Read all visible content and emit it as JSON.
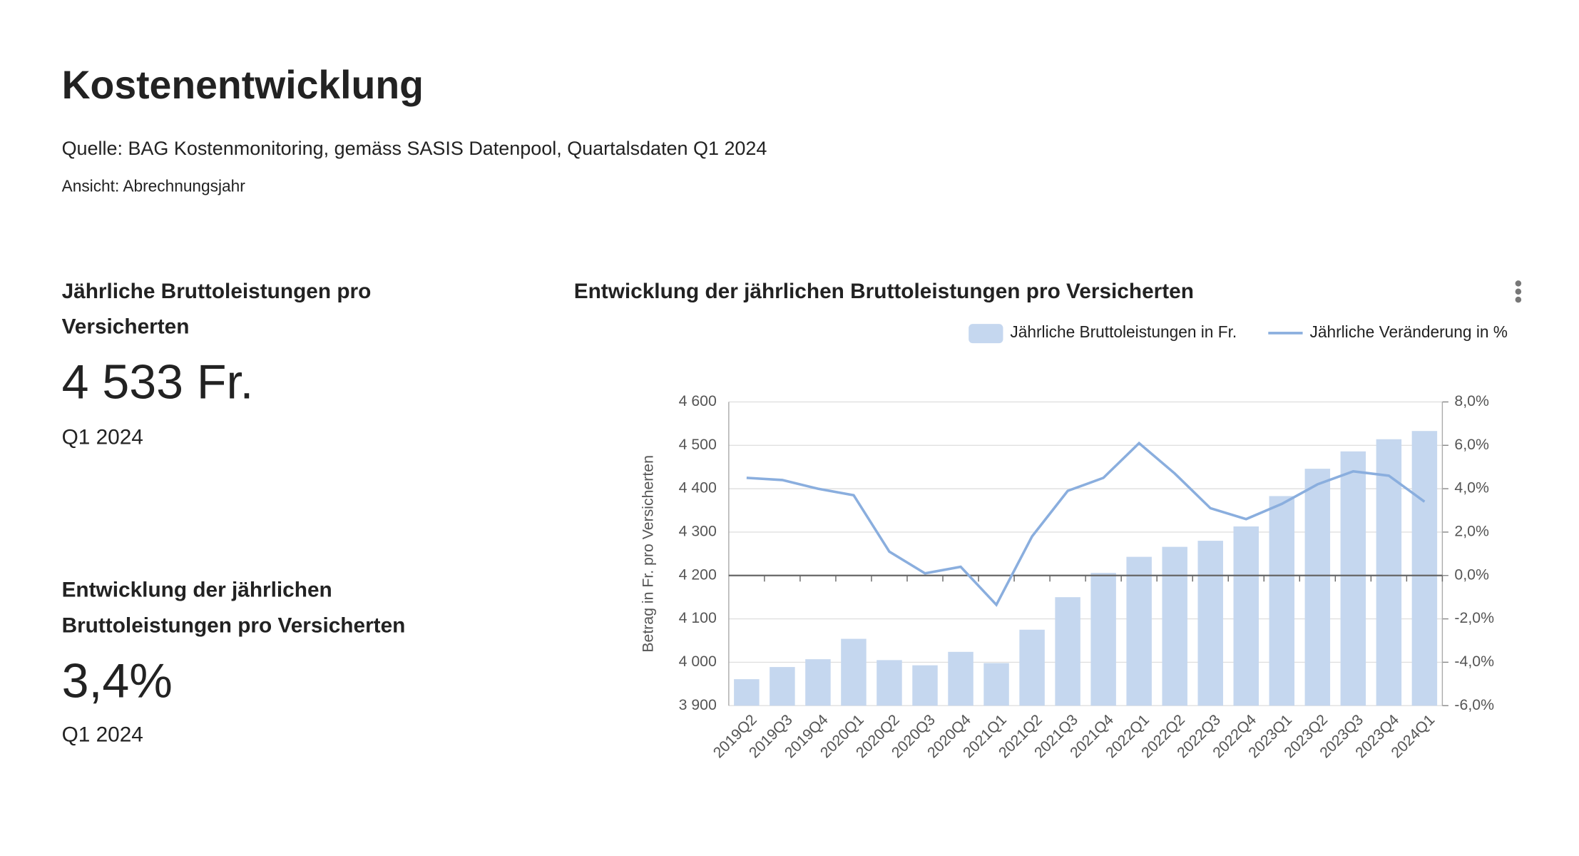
{
  "header": {
    "title": "Kostenentwicklung",
    "source": "Quelle: BAG Kostenmonitoring, gemäss SASIS Datenpool, Quartalsdaten Q1 2024",
    "view": "Ansicht: Abrechnungsjahr"
  },
  "kpis": [
    {
      "title_lines": [
        "Jährliche Bruttoleistungen pro",
        "Versicherten"
      ],
      "value": "4 533 Fr.",
      "period": "Q1 2024"
    },
    {
      "title_lines": [
        "Entwicklung der jährlichen",
        "Bruttoleistungen pro Versicherten"
      ],
      "value": "3,4%",
      "period": "Q1 2024"
    }
  ],
  "chart_data": {
    "type": "bar-line",
    "title": "Entwicklung der jährlichen Bruttoleistungen pro Versicherten",
    "ylabel": "Betrag in Fr. pro Versicherten",
    "categories": [
      "2019Q2",
      "2019Q3",
      "2019Q4",
      "2020Q1",
      "2020Q2",
      "2020Q3",
      "2020Q4",
      "2021Q1",
      "2021Q2",
      "2021Q3",
      "2021Q4",
      "2022Q1",
      "2022Q2",
      "2022Q3",
      "2022Q4",
      "2023Q1",
      "2023Q2",
      "2023Q3",
      "2023Q4",
      "2024Q1"
    ],
    "series": [
      {
        "name": "Jährliche Bruttoleistungen in Fr.",
        "type": "bar",
        "color": "#c5d7ef",
        "values": [
          3961,
          3989,
          4007,
          4054,
          4005,
          3993,
          4024,
          3998,
          4075,
          4150,
          4206,
          4243,
          4266,
          4280,
          4313,
          4383,
          4446,
          4486,
          4514,
          4533
        ]
      },
      {
        "name": "Jährliche Veränderung in %",
        "type": "line",
        "axis": "y2",
        "color": "#8aaede",
        "values": [
          4.5,
          4.4,
          4.0,
          3.7,
          1.1,
          0.1,
          0.4,
          -1.35,
          1.8,
          3.9,
          4.5,
          6.1,
          4.7,
          3.1,
          2.6,
          3.3,
          4.2,
          4.8,
          4.6,
          3.4
        ]
      }
    ],
    "ylim": [
      3900,
      4600
    ],
    "yticks": [
      {
        "value": 3900,
        "label": "3 900"
      },
      {
        "value": 4000,
        "label": "4 000"
      },
      {
        "value": 4100,
        "label": "4 100"
      },
      {
        "value": 4200,
        "label": "4 200"
      },
      {
        "value": 4300,
        "label": "4 300"
      },
      {
        "value": 4400,
        "label": "4 400"
      },
      {
        "value": 4500,
        "label": "4 500"
      },
      {
        "value": 4600,
        "label": "4 600"
      }
    ],
    "y2lim": [
      -6,
      8
    ],
    "y2ticks": [
      {
        "value": -6,
        "label": "-6,0%"
      },
      {
        "value": -4,
        "label": "-4,0%"
      },
      {
        "value": -2,
        "label": "-2,0%"
      },
      {
        "value": 0,
        "label": "0,0%"
      },
      {
        "value": 2,
        "label": "2,0%"
      },
      {
        "value": 4,
        "label": "4,0%"
      },
      {
        "value": 6,
        "label": "6,0%"
      },
      {
        "value": 8,
        "label": "8,0%"
      }
    ],
    "grid": true,
    "legend": "top-right"
  }
}
